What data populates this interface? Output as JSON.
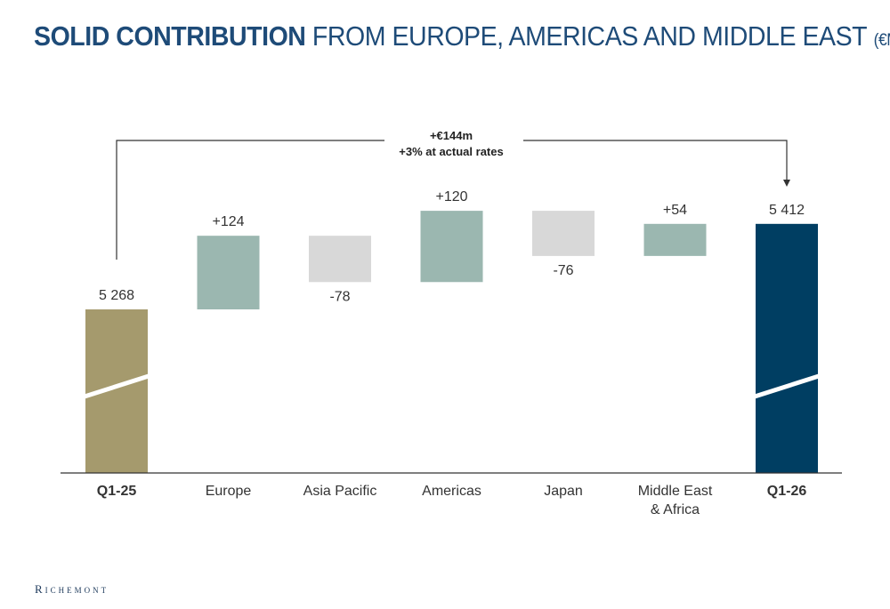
{
  "title": {
    "bold": "SOLID CONTRIBUTION",
    "rest": "FROM EUROPE, AMERICAS AND MIDDLE EAST",
    "unit": "(€M)"
  },
  "callout": {
    "line1": "+€144m",
    "line2": "+3% at actual rates"
  },
  "colors": {
    "start": "#a59a6d",
    "positive": "#9bb7b0",
    "negative": "#d8d8d8",
    "end": "#003e62",
    "text": "#333333",
    "title": "#1e4b78"
  },
  "chart_data": {
    "type": "bar",
    "subtype": "waterfall",
    "categories": [
      "Q1-25",
      "Europe",
      "Asia Pacific",
      "Americas",
      "Japan",
      "Middle East\n& Africa",
      "Q1-26"
    ],
    "category_lines": [
      [
        "Q1-25"
      ],
      [
        "Europe"
      ],
      [
        "Asia Pacific"
      ],
      [
        "Americas"
      ],
      [
        "Japan"
      ],
      [
        "Middle East",
        "& Africa"
      ],
      [
        "Q1-26"
      ]
    ],
    "bold_categories": [
      "Q1-25",
      "Q1-26"
    ],
    "values": [
      5268,
      124,
      -78,
      120,
      -76,
      54,
      5412
    ],
    "kinds": [
      "total",
      "delta",
      "delta",
      "delta",
      "delta",
      "delta",
      "total"
    ],
    "labels": [
      "5 268",
      "+124",
      "-78",
      "+120",
      "-76",
      "+54",
      "5 412"
    ],
    "axis_break": true
  },
  "logo": "Richemont"
}
